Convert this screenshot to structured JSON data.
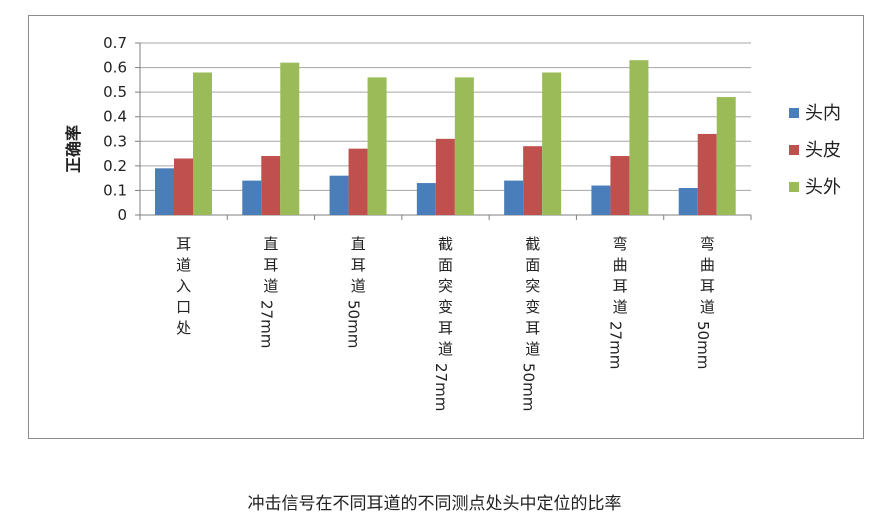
{
  "chart_data": {
    "type": "bar",
    "ylabel": "正确率",
    "ylim": [
      0,
      0.7
    ],
    "yticks": [
      "0",
      "0.1",
      "0.2",
      "0.3",
      "0.4",
      "0.5",
      "0.6",
      "0.7"
    ],
    "grid": true,
    "legend_position": "right",
    "categories": [
      "耳道入口处",
      "直耳道27mm",
      "直耳道50mm",
      "截面突变耳道27mm",
      "截面突变耳道50mm",
      "弯曲耳道27mm",
      "弯曲耳道50mm"
    ],
    "series": [
      {
        "name": "头内",
        "color": "#4a7ebb",
        "values": [
          0.19,
          0.14,
          0.16,
          0.13,
          0.14,
          0.12,
          0.11
        ]
      },
      {
        "name": "头皮",
        "color": "#c0504d",
        "values": [
          0.23,
          0.24,
          0.27,
          0.31,
          0.28,
          0.24,
          0.33
        ]
      },
      {
        "name": "头外",
        "color": "#9bbb59",
        "values": [
          0.58,
          0.62,
          0.56,
          0.56,
          0.58,
          0.63,
          0.48
        ]
      }
    ]
  },
  "caption": "冲击信号在不同耳道的不同测点处头中定位的比率"
}
